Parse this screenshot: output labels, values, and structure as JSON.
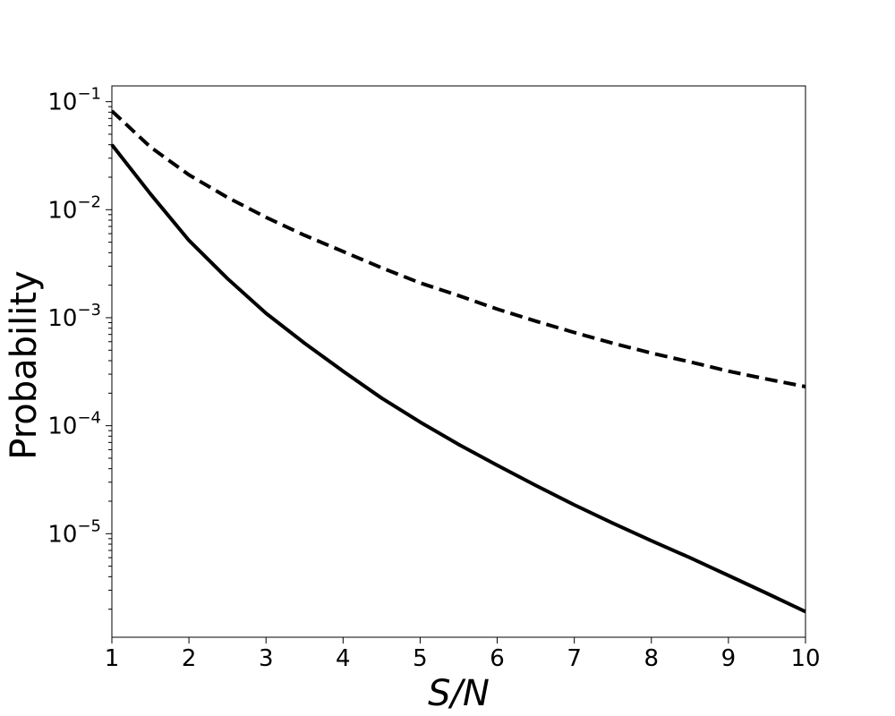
{
  "chart_data": {
    "type": "line",
    "title": "",
    "xlabel": "S/N",
    "ylabel": "Probability",
    "xlim": [
      1,
      10
    ],
    "ylim": [
      1.1e-06,
      0.14
    ],
    "yscale": "log",
    "grid": false,
    "x_ticks": [
      1,
      2,
      3,
      4,
      5,
      6,
      7,
      8,
      9,
      10
    ],
    "y_ticks": [
      {
        "value": 0.1,
        "base": "10",
        "exponent": "−1"
      },
      {
        "value": 0.01,
        "base": "10",
        "exponent": "−2"
      },
      {
        "value": 0.001,
        "base": "10",
        "exponent": "−3"
      },
      {
        "value": 0.0001,
        "base": "10",
        "exponent": "−4"
      },
      {
        "value": 1e-05,
        "base": "10",
        "exponent": "−5"
      }
    ],
    "series": [
      {
        "style": "solid",
        "color": "#000000",
        "x": [
          1,
          1.5,
          2,
          2.5,
          3,
          3.5,
          4,
          4.5,
          5,
          5.5,
          6,
          6.5,
          7,
          7.5,
          8,
          8.5,
          9,
          9.5,
          10
        ],
        "y": [
          0.04,
          0.014,
          0.0052,
          0.0023,
          0.0011,
          0.00058,
          0.00032,
          0.00018,
          0.000108,
          6.7e-05,
          4.3e-05,
          2.8e-05,
          1.85e-05,
          1.25e-05,
          8.6e-06,
          6e-06,
          4.1e-06,
          2.8e-06,
          1.9e-06
        ]
      },
      {
        "style": "dashed",
        "color": "#000000",
        "x": [
          1,
          1.5,
          2,
          2.5,
          3,
          3.5,
          4,
          4.5,
          5,
          5.5,
          6,
          6.5,
          7,
          7.5,
          8,
          8.5,
          9,
          9.5,
          10
        ],
        "y": [
          0.082,
          0.038,
          0.021,
          0.013,
          0.0085,
          0.0058,
          0.0041,
          0.0029,
          0.0021,
          0.0016,
          0.0012,
          0.00093,
          0.00073,
          0.00058,
          0.00047,
          0.00039,
          0.00032,
          0.00027,
          0.00023
        ]
      }
    ]
  }
}
